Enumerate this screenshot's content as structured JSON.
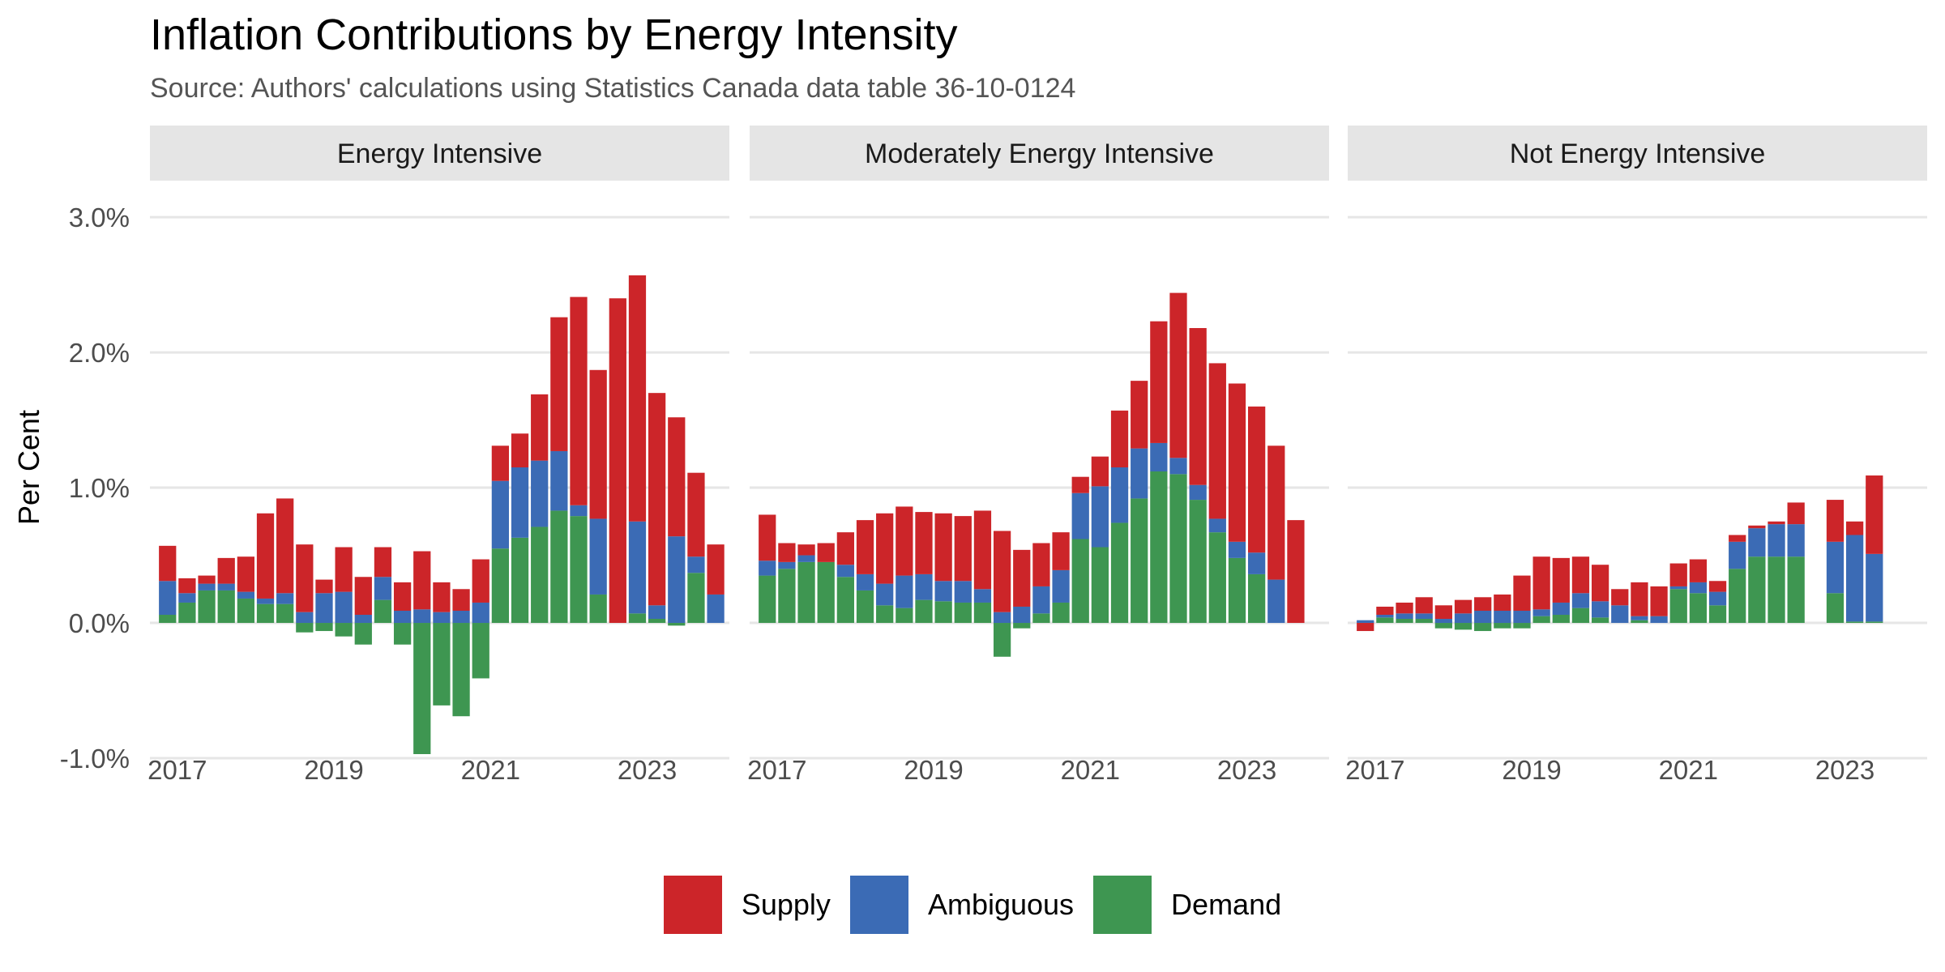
{
  "title": "Inflation Contributions by Energy Intensity",
  "subtitle": "Source: Authors' calculations using Statistics Canada data table 36-10-0124",
  "chart_data": {
    "type": "bar",
    "stacked": true,
    "ylabel": "Per Cent",
    "ylim": [
      -1.0,
      3.3
    ],
    "y_ticks": [
      -1.0,
      0.0,
      1.0,
      2.0,
      3.0
    ],
    "y_tick_labels": [
      "-1.0%",
      "0.0%",
      "1.0%",
      "2.0%",
      "3.0%"
    ],
    "x_ticks": [
      2017,
      2019,
      2021,
      2023
    ],
    "x_tick_labels": [
      "2017",
      "2019",
      "2021",
      "2023"
    ],
    "xlim": [
      2016.65,
      2024.05
    ],
    "grid": true,
    "legend_position": "bottom",
    "series_names": [
      "Supply",
      "Ambiguous",
      "Demand"
    ],
    "colors": {
      "Supply": "#CC2529",
      "Ambiguous": "#3B6BB5",
      "Demand": "#3E9651",
      "gridline": "#e6e6e6",
      "strip": "#e5e5e5"
    },
    "x": [
      2016.875,
      2017.125,
      2017.375,
      2017.625,
      2017.875,
      2018.125,
      2018.375,
      2018.625,
      2018.875,
      2019.125,
      2019.375,
      2019.625,
      2019.875,
      2020.125,
      2020.375,
      2020.625,
      2020.875,
      2021.125,
      2021.375,
      2021.625,
      2021.875,
      2022.125,
      2022.375,
      2022.625,
      2022.875,
      2023.125,
      2023.375,
      2023.625,
      2023.875
    ],
    "panels": [
      {
        "label": "Energy Intensive",
        "supply": [
          0.26,
          0.11,
          0.06,
          0.19,
          0.26,
          0.63,
          0.7,
          0.5,
          0.1,
          0.33,
          0.28,
          0.22,
          0.21,
          0.43,
          0.22,
          0.16,
          0.32,
          0.26,
          0.25,
          0.49,
          0.99,
          1.54,
          1.1,
          2.4,
          1.82,
          1.57,
          0.88,
          0.62,
          0.37
        ],
        "ambiguous": [
          0.25,
          0.07,
          0.05,
          0.05,
          0.05,
          0.04,
          0.08,
          0.08,
          0.22,
          0.23,
          0.06,
          0.17,
          0.09,
          0.1,
          0.08,
          0.09,
          0.15,
          0.5,
          0.52,
          0.49,
          0.44,
          0.08,
          0.56,
          0.0,
          0.68,
          0.1,
          0.64,
          0.12,
          0.21
        ],
        "demand": [
          0.06,
          0.15,
          0.24,
          0.24,
          0.18,
          0.14,
          0.14,
          -0.07,
          -0.06,
          -0.1,
          -0.16,
          0.17,
          -0.16,
          -0.97,
          -0.61,
          -0.69,
          -0.41,
          0.55,
          0.63,
          0.71,
          0.83,
          0.79,
          0.21,
          0.0,
          0.07,
          0.03,
          -0.02,
          0.37,
          0.0
        ]
      },
      {
        "label": "Moderately Energy Intensive",
        "supply": [
          0.34,
          0.14,
          0.08,
          0.14,
          0.24,
          0.4,
          0.52,
          0.51,
          0.46,
          0.5,
          0.48,
          0.58,
          0.6,
          0.42,
          0.32,
          0.28,
          0.12,
          0.22,
          0.42,
          0.5,
          0.9,
          1.22,
          1.16,
          1.15,
          1.17,
          1.08,
          0.99,
          0.76,
          0.0
        ],
        "ambiguous": [
          0.11,
          0.05,
          0.05,
          0.0,
          0.09,
          0.12,
          0.16,
          0.24,
          0.19,
          0.15,
          0.16,
          0.1,
          0.08,
          0.12,
          0.2,
          0.24,
          0.34,
          0.45,
          0.41,
          0.37,
          0.21,
          0.12,
          0.11,
          0.1,
          0.12,
          0.16,
          0.32,
          0.0,
          0.0
        ],
        "demand": [
          0.35,
          0.4,
          0.45,
          0.45,
          0.34,
          0.24,
          0.13,
          0.11,
          0.17,
          0.16,
          0.15,
          0.15,
          -0.25,
          -0.04,
          0.07,
          0.15,
          0.62,
          0.56,
          0.74,
          0.92,
          1.12,
          1.1,
          0.91,
          0.67,
          0.48,
          0.36,
          0.0,
          0.0,
          0.0
        ]
      },
      {
        "label": "Not Energy Intensive",
        "supply": [
          -0.06,
          0.06,
          0.08,
          0.12,
          0.1,
          0.1,
          0.1,
          0.12,
          0.26,
          0.39,
          0.33,
          0.27,
          0.27,
          0.12,
          0.25,
          0.22,
          0.17,
          0.17,
          0.08,
          0.05,
          0.02,
          0.02,
          0.16,
          0.0,
          0.31,
          0.1,
          0.58,
          0.0,
          0.0
        ],
        "ambiguous": [
          0.02,
          0.02,
          0.04,
          0.04,
          0.03,
          0.07,
          0.09,
          0.09,
          0.09,
          0.05,
          0.09,
          0.11,
          0.12,
          0.13,
          0.03,
          0.05,
          0.02,
          0.08,
          0.1,
          0.2,
          0.21,
          0.24,
          0.24,
          0.0,
          0.38,
          0.64,
          0.5,
          0.0,
          0.0
        ],
        "demand": [
          0.0,
          0.04,
          0.03,
          0.03,
          -0.04,
          -0.05,
          -0.06,
          -0.04,
          -0.04,
          0.05,
          0.06,
          0.11,
          0.04,
          0.0,
          0.02,
          0.0,
          0.25,
          0.22,
          0.13,
          0.4,
          0.49,
          0.49,
          0.49,
          0.0,
          0.22,
          0.01,
          0.01,
          0.0,
          0.0
        ]
      }
    ]
  }
}
